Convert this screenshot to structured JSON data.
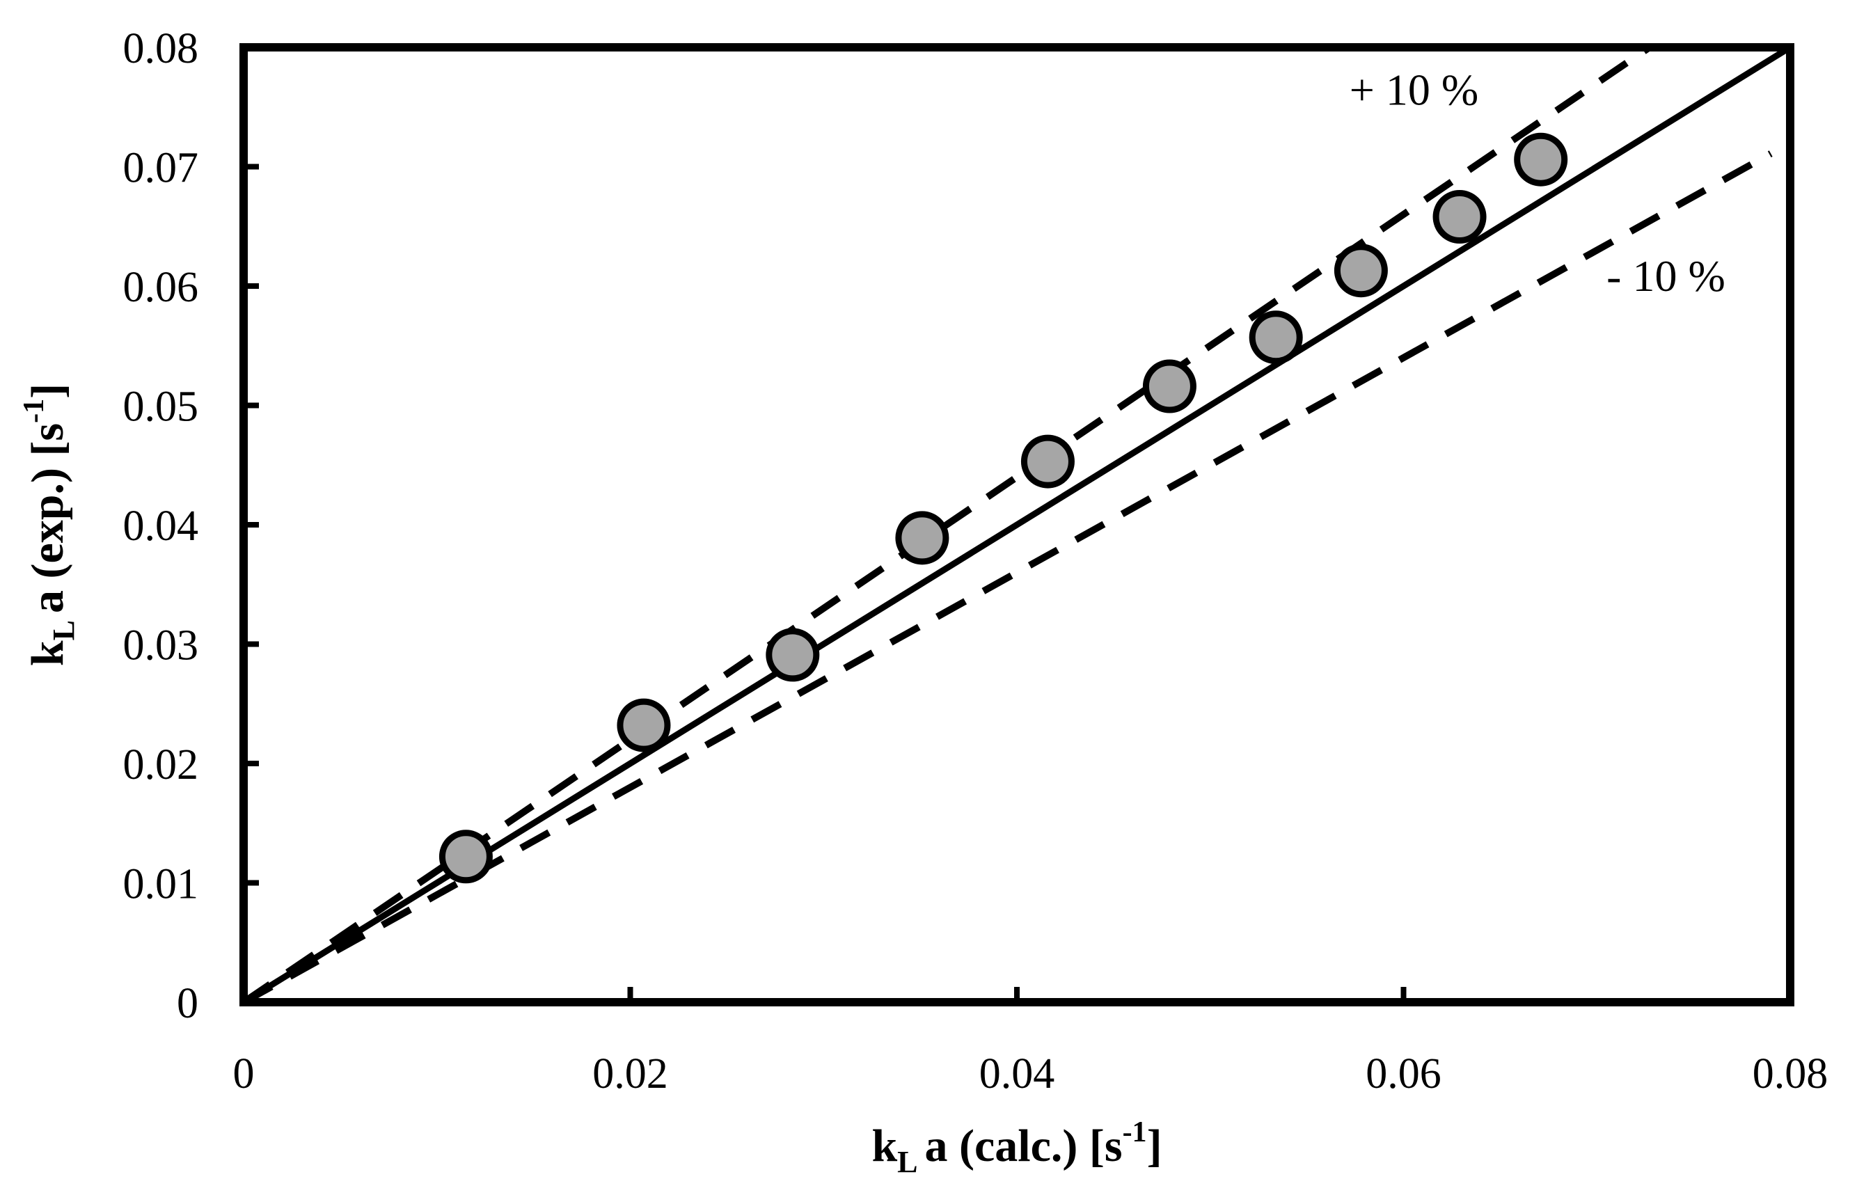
{
  "chart_data": {
    "type": "scatter",
    "xlabel": {
      "base": "k",
      "sub": "L",
      "rest": "a (calc.) [s",
      "sup": "-1",
      "end": "]"
    },
    "ylabel": {
      "base": "k",
      "sub": "L",
      "rest": "a (exp.) [s",
      "sup": "-1",
      "end": "]"
    },
    "xlim": [
      0,
      0.08
    ],
    "ylim": [
      0,
      0.08
    ],
    "x_ticks": [
      {
        "value": 0,
        "label": "0"
      },
      {
        "value": 0.02,
        "label": "0.02"
      },
      {
        "value": 0.04,
        "label": "0.04"
      },
      {
        "value": 0.06,
        "label": "0.06"
      },
      {
        "value": 0.08,
        "label": "0.08"
      }
    ],
    "y_ticks": [
      {
        "value": 0,
        "label": "0"
      },
      {
        "value": 0.01,
        "label": "0.01"
      },
      {
        "value": 0.02,
        "label": "0.02"
      },
      {
        "value": 0.03,
        "label": "0.03"
      },
      {
        "value": 0.04,
        "label": "0.04"
      },
      {
        "value": 0.05,
        "label": "0.05"
      },
      {
        "value": 0.06,
        "label": "0.06"
      },
      {
        "value": 0.07,
        "label": "0.07"
      },
      {
        "value": 0.08,
        "label": "0.08"
      }
    ],
    "grid": false,
    "series": [
      {
        "name": "data",
        "kind": "points",
        "color": "#a6a6a6",
        "edge_color": "#000000",
        "points": [
          {
            "x": 0.0115,
            "y": 0.0122
          },
          {
            "x": 0.0207,
            "y": 0.0232
          },
          {
            "x": 0.0284,
            "y": 0.0291
          },
          {
            "x": 0.0351,
            "y": 0.0389
          },
          {
            "x": 0.0416,
            "y": 0.0453
          },
          {
            "x": 0.0479,
            "y": 0.0516
          },
          {
            "x": 0.0534,
            "y": 0.0557
          },
          {
            "x": 0.0578,
            "y": 0.0613
          },
          {
            "x": 0.0629,
            "y": 0.0658
          },
          {
            "x": 0.0671,
            "y": 0.0706
          }
        ]
      },
      {
        "name": "parity line",
        "kind": "line",
        "style": "solid",
        "slope": 1.0,
        "x_range": [
          0,
          0.08
        ]
      },
      {
        "name": "+10 % bound",
        "kind": "line",
        "style": "dashed",
        "slope": 1.1,
        "x_range": [
          0,
          0.0727
        ]
      },
      {
        "name": "-10 % bound",
        "kind": "line",
        "style": "dashed",
        "slope": 0.9,
        "x_range": [
          0,
          0.079
        ]
      }
    ],
    "annotations": [
      {
        "text": "+ 10 %",
        "x": 0.0572,
        "y": 0.0752
      },
      {
        "text": "- 10 %",
        "x": 0.0705,
        "y": 0.0596
      }
    ]
  }
}
